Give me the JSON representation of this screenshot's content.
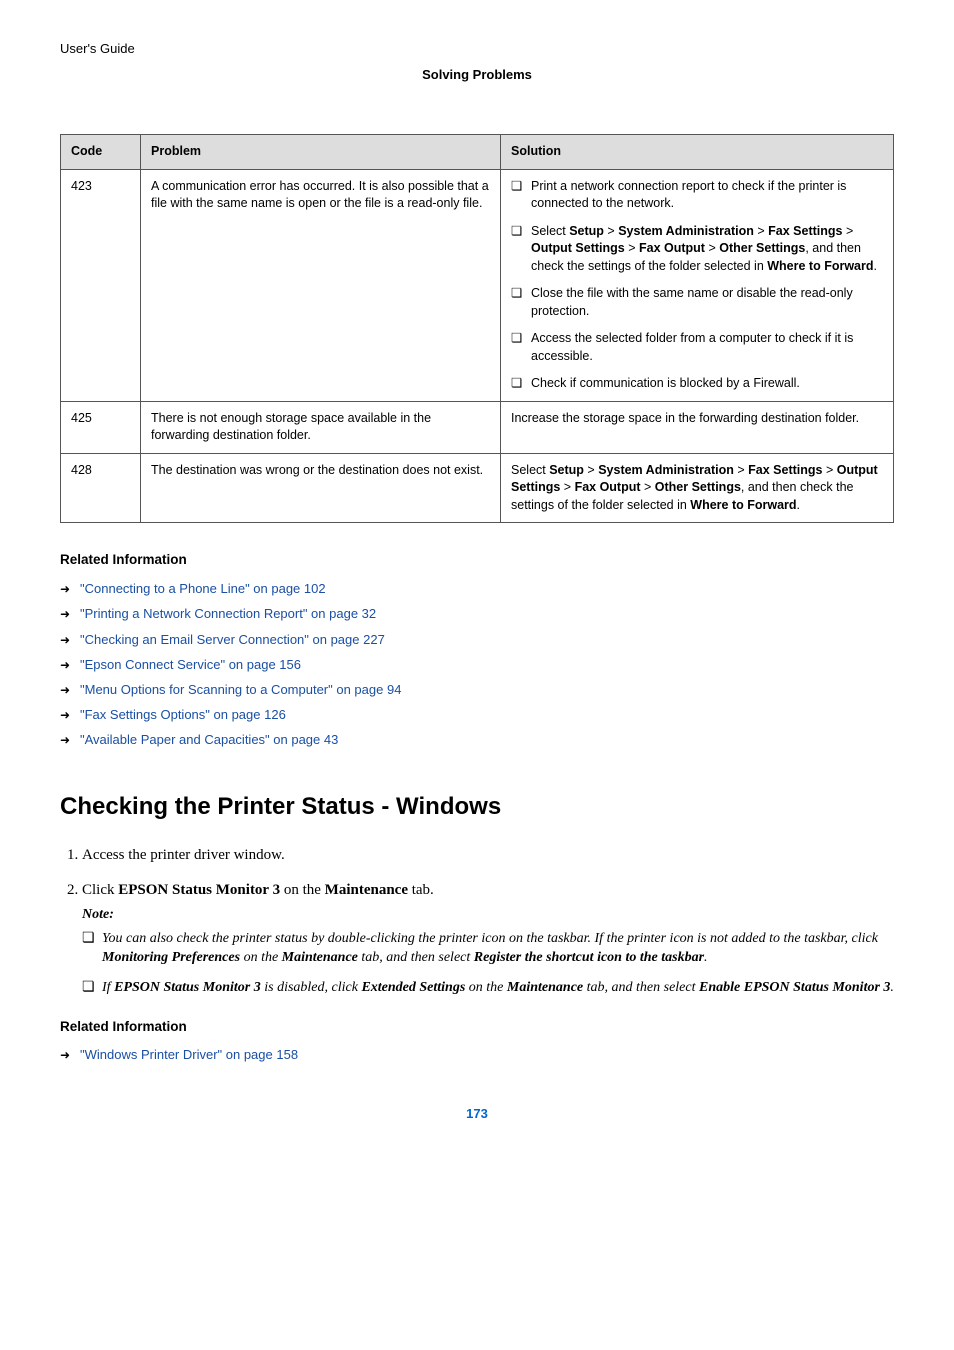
{
  "header": {
    "guide_label": "User's Guide",
    "section_title": "Solving Problems"
  },
  "table": {
    "headers": {
      "code": "Code",
      "problem": "Problem",
      "solution": "Solution"
    },
    "header_bg": "#dddddd",
    "border_color": "#555555",
    "rows": [
      {
        "code": "423",
        "problem": "A communication error has occurred. It is also possible that a file with the same name is open or the file is a read-only file.",
        "solutions": {
          "s1": "Print a network connection report to check if the printer is connected to the network.",
          "s2_pre": "Select ",
          "s2_b1": "Setup",
          "s2_gt1": " > ",
          "s2_b2": "System Administration",
          "s2_gt2": " > ",
          "s2_b3": "Fax Settings",
          "s2_gt3": " > ",
          "s2_b4": "Output Settings",
          "s2_gt4": " > ",
          "s2_b5": "Fax Output",
          "s2_gt5": " > ",
          "s2_b6": "Other Settings",
          "s2_mid": ", and then check the settings of the folder selected in ",
          "s2_b7": "Where to Forward",
          "s2_end": ".",
          "s3": "Close the file with the same name or disable the read-only protection.",
          "s4": "Access the selected folder from a computer to check if it is accessible.",
          "s5": "Check if communication is blocked by a Firewall."
        }
      },
      {
        "code": "425",
        "problem": "There is not enough storage space available in the forwarding destination folder.",
        "solution_plain": "Increase the storage space in the forwarding destination folder."
      },
      {
        "code": "428",
        "problem": "The destination was wrong or the destination does not exist.",
        "sol": {
          "pre": "Select ",
          "b1": "Setup",
          "gt1": " > ",
          "b2": "System Administration",
          "gt2": " > ",
          "b3": "Fax Settings",
          "gt3": " > ",
          "b4": "Output Settings",
          "gt4": " > ",
          "b5": "Fax Output",
          "gt5": " > ",
          "b6": "Other Settings",
          "mid": ", and then check the settings of the folder selected in ",
          "b7": "Where to Forward",
          "end": "."
        }
      }
    ]
  },
  "related1": {
    "heading": "Related Information",
    "links": [
      "\"Connecting to a Phone Line\" on page 102",
      "\"Printing a Network Connection Report\" on page 32",
      "\"Checking an Email Server Connection\" on page 227",
      "\"Epson Connect Service\" on page 156",
      "\"Menu Options for Scanning to a Computer\" on page 94",
      "\"Fax Settings Options\" on page 126",
      "\"Available Paper and Capacities\" on page 43"
    ]
  },
  "h2": "Checking the Printer Status - Windows",
  "steps": {
    "s1": "Access the printer driver window.",
    "s2_pre": "Click ",
    "s2_b1": "EPSON Status Monitor 3",
    "s2_mid": " on the ",
    "s2_b2": "Maintenance",
    "s2_end": " tab."
  },
  "note": {
    "label": "Note:",
    "n1_a": "You can also check the printer status by double-clicking the printer icon on the taskbar. If the printer icon is not added to the taskbar, click ",
    "n1_b1": "Monitoring Preferences",
    "n1_b": " on the ",
    "n1_b2": "Maintenance",
    "n1_c": " tab, and then select ",
    "n1_b3": "Register the shortcut icon to the taskbar",
    "n1_d": ".",
    "n2_a": "If ",
    "n2_b1": "EPSON Status Monitor 3",
    "n2_b": " is disabled, click ",
    "n2_b2": "Extended Settings",
    "n2_c": " on the ",
    "n2_b3": "Maintenance",
    "n2_d": " tab, and then select ",
    "n2_b4": "Enable EPSON Status Monitor 3",
    "n2_e": "."
  },
  "related2": {
    "heading": "Related Information",
    "links": [
      "\"Windows Printer Driver\" on page 158"
    ]
  },
  "page_number": "173",
  "colors": {
    "link_color": "#1a4fa3",
    "page_num_color": "#0066cc"
  }
}
